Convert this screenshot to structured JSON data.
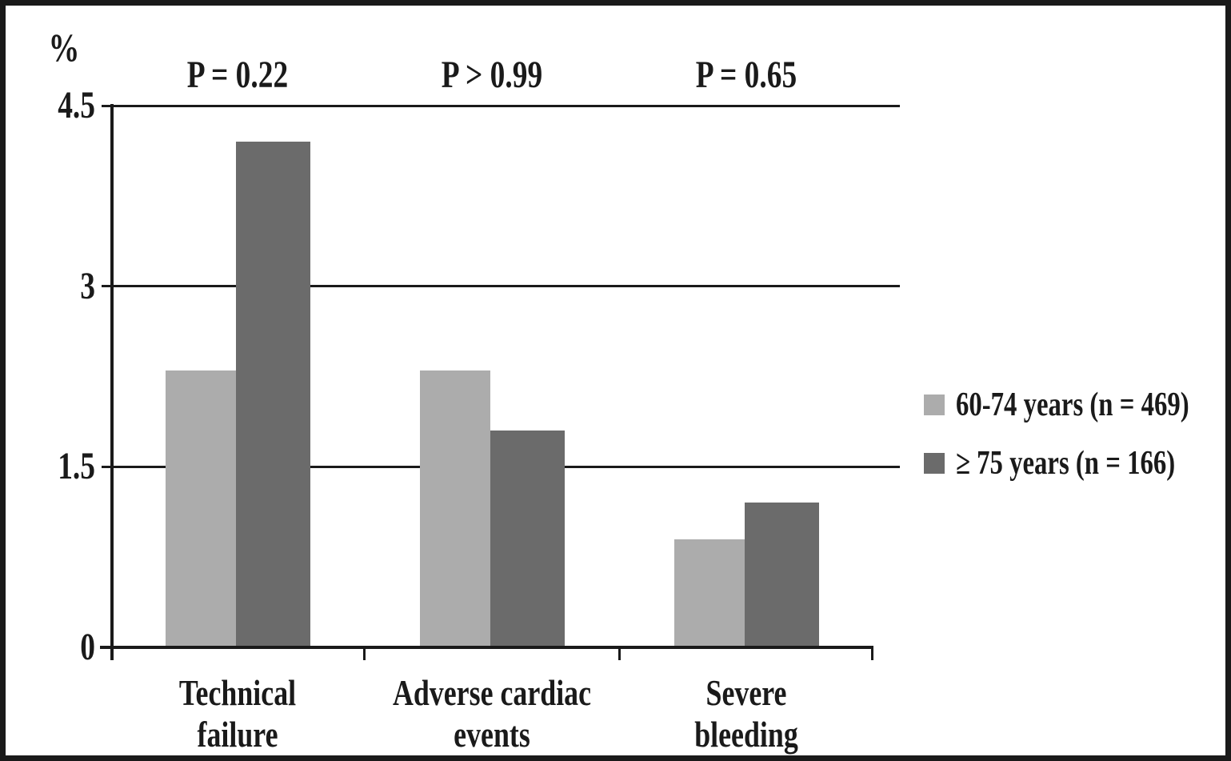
{
  "figure": {
    "unit_label": "%"
  },
  "chart_data": {
    "type": "bar",
    "title": "",
    "xlabel": "",
    "ylabel": "%",
    "categories": [
      "Technical failure",
      "Adverse cardiac events",
      "Severe bleeding"
    ],
    "categories_wrapped": [
      [
        "Technical",
        "failure"
      ],
      [
        "Adverse cardiac",
        "events"
      ],
      [
        "Severe",
        "bleeding"
      ]
    ],
    "series": [
      {
        "name": "60-74 years (n = 469)",
        "color": "#acacac",
        "values": [
          2.3,
          2.3,
          0.9
        ]
      },
      {
        "name": "≥ 75 years (n = 166)",
        "color": "#6b6b6b",
        "values": [
          4.2,
          1.8,
          1.2
        ]
      }
    ],
    "annotations": [
      "P = 0.22",
      "P > 0.99",
      "P = 0.65"
    ],
    "yticks": [
      0,
      1.5,
      3,
      4.5
    ],
    "ylim": [
      0,
      4.5
    ],
    "grid": true,
    "legend_position": "right",
    "ink_color": "#1a1a1a"
  }
}
